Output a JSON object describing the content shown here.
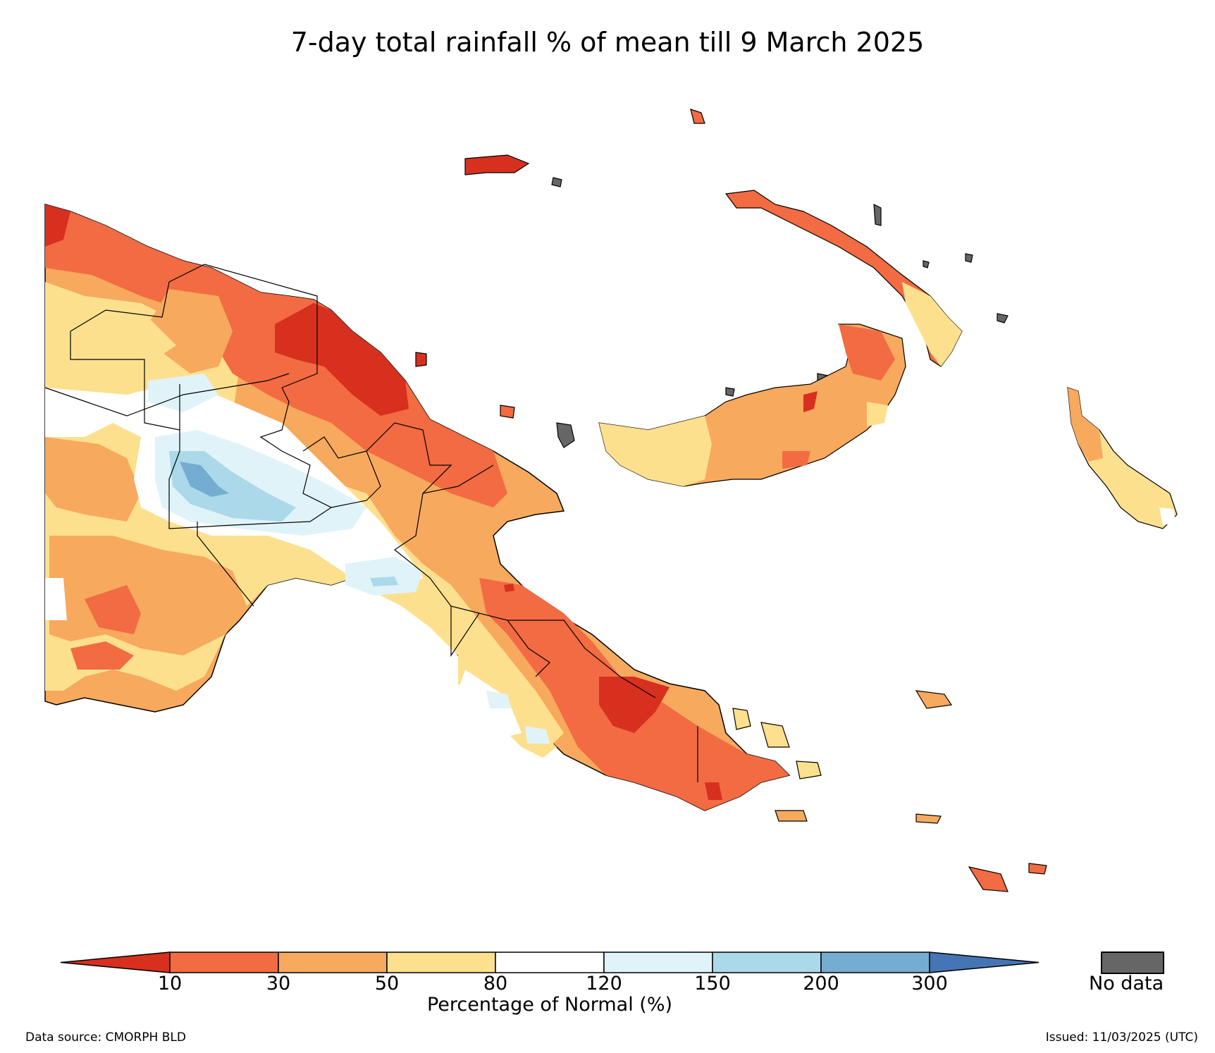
{
  "title": "7-day total rainfall % of mean till 9 March 2025",
  "legend": {
    "levels": [
      "10",
      "30",
      "50",
      "80",
      "120",
      "150",
      "200",
      "300"
    ],
    "colors": [
      "#d7301f",
      "#f26b43",
      "#f7a95e",
      "#fde08e",
      "#ffffff",
      "#e0f3f8",
      "#abd9e9",
      "#74add1",
      "#4575b4"
    ],
    "label": "Percentage of Normal (%)",
    "nodata_label": "No data",
    "nodata_color": "#666666"
  },
  "footer": {
    "source": "Data source: CMORPH BLD",
    "issued": "Issued: 11/03/2025 (UTC)"
  }
}
